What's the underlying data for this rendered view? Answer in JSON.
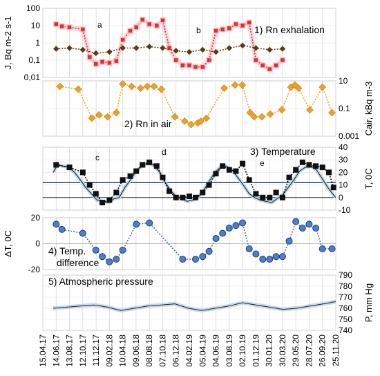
{
  "chart_data": [
    {
      "panel": 1,
      "type": "line",
      "title": "1) Rn exhalation",
      "ylabel": "J, Bq m-2 s-1",
      "yscale": "log",
      "ylim": [
        0.01,
        100
      ],
      "yticks": [
        "100",
        "10",
        "1",
        "0,1",
        "0,01"
      ],
      "annotations": [
        "a",
        "b"
      ],
      "series": [
        {
          "color": "#e0302c",
          "x": [
            "2017-06-14",
            "2017-07-10",
            "2017-08-13",
            "2017-10-12",
            "2017-11-12",
            "2017-12-10",
            "2018-01-08",
            "2018-02-09",
            "2018-03-12",
            "2018-04-10",
            "2018-05-14",
            "2018-06-10",
            "2018-07-08",
            "2018-08-08",
            "2018-09-10",
            "2018-10-07",
            "2018-11-06",
            "2018-12-06",
            "2019-01-05",
            "2019-02-04",
            "2019-03-04",
            "2019-04-05",
            "2019-05-04",
            "2019-06-04",
            "2019-07-04",
            "2019-08-03",
            "2019-09-02",
            "2019-10-02",
            "2019-11-01",
            "2019-12-01",
            "2020-01-01",
            "2020-02-01",
            "2020-03-01",
            "2020-03-30"
          ],
          "y": [
            12,
            9,
            8,
            6,
            0.15,
            0.06,
            0.08,
            0.07,
            0.09,
            1.5,
            5,
            8,
            22,
            12,
            10,
            20,
            0.5,
            0.1,
            0.05,
            0.05,
            0.04,
            0.04,
            0.1,
            5,
            6,
            7,
            12,
            10,
            15,
            0.1,
            0.05,
            0.03,
            0.05,
            0.1
          ]
        },
        {
          "color": "#7a3a10",
          "x": [
            "2017-06-14",
            "2017-08-13",
            "2017-10-12",
            "2017-12-10",
            "2018-02-09",
            "2018-04-10",
            "2018-06-10",
            "2018-08-08",
            "2018-10-07",
            "2018-12-06",
            "2019-02-04",
            "2019-04-05",
            "2019-06-04",
            "2019-08-03",
            "2019-10-02",
            "2019-12-01",
            "2020-02-01",
            "2020-03-30"
          ],
          "y": [
            0.45,
            0.5,
            0.4,
            0.25,
            0.3,
            0.5,
            0.5,
            0.6,
            0.5,
            0.35,
            0.3,
            0.4,
            0.3,
            0.5,
            0.7,
            0.5,
            0.4,
            0.45
          ]
        }
      ]
    },
    {
      "panel": 2,
      "type": "line",
      "title": "2) Rn in air",
      "ylabel": "Cair, kBq m-3",
      "yscale": "log",
      "ylim": [
        0.001,
        10
      ],
      "yticks": [
        "10",
        "0.1",
        "0.001"
      ],
      "series": [
        {
          "color": "#f0a020",
          "x": [
            "2017-07-01",
            "2017-09-22",
            "2017-11-22",
            "2017-12-24",
            "2018-02-01",
            "2018-03-12",
            "2018-04-10",
            "2018-05-20",
            "2018-06-29",
            "2018-07-30",
            "2018-08-29",
            "2018-10-01",
            "2018-12-01",
            "2019-01-14",
            "2019-02-12",
            "2019-03-14",
            "2019-03-28",
            "2019-04-22",
            "2019-07-11",
            "2019-08-29",
            "2019-10-01",
            "2019-11-05",
            "2019-11-23",
            "2019-12-28",
            "2020-02-04",
            "2020-03-27",
            "2020-05-07",
            "2020-05-25",
            "2020-06-10",
            "2020-07-31",
            "2020-09-26",
            "2020-11-08"
          ],
          "y": [
            4,
            2.5,
            0.02,
            0.035,
            0.025,
            0.05,
            6,
            4,
            3,
            4,
            4,
            2.5,
            0.025,
            0.012,
            0.007,
            0.009,
            0.012,
            0.02,
            3,
            5,
            5,
            0.05,
            0.025,
            0.025,
            0.04,
            0.08,
            3.5,
            5,
            3,
            0.08,
            3.5,
            0.05
          ]
        }
      ]
    },
    {
      "panel": 3,
      "type": "line",
      "title": "3) Temperature",
      "ylabel": "T, 0C",
      "ylim": [
        -10,
        40
      ],
      "yticks": [
        "40",
        "30",
        "20",
        "10",
        "0",
        "-10"
      ],
      "reference_line": 12,
      "annotations": [
        "c",
        "d",
        "e"
      ],
      "series": [
        {
          "name": "daily",
          "color": "#222222",
          "x": [
            "2017-06-01",
            "2017-06-20",
            "2017-07-15",
            "2017-08-10",
            "2017-09-05",
            "2017-10-01",
            "2017-10-25",
            "2017-11-20",
            "2017-12-15",
            "2018-01-10",
            "2018-02-05",
            "2018-03-01",
            "2018-03-25",
            "2018-04-20",
            "2018-05-15",
            "2018-06-10",
            "2018-07-05",
            "2018-07-30",
            "2018-08-25",
            "2018-09-20",
            "2018-10-15",
            "2018-11-10",
            "2018-12-05",
            "2019-01-01",
            "2019-01-25",
            "2019-02-20",
            "2019-03-15",
            "2019-04-10",
            "2019-05-05",
            "2019-05-30",
            "2019-06-25",
            "2019-07-20",
            "2019-08-15",
            "2019-09-10",
            "2019-10-05",
            "2019-11-01",
            "2019-11-25",
            "2019-12-20",
            "2020-01-15",
            "2020-02-10",
            "2020-03-05",
            "2020-03-30",
            "2020-04-25",
            "2020-05-20",
            "2020-06-15",
            "2020-07-10",
            "2020-08-05",
            "2020-08-30",
            "2020-09-25",
            "2020-10-20",
            "2020-11-15",
            "2020-11-25"
          ],
          "y": [
            20,
            26,
            25,
            24,
            20,
            14,
            8,
            3,
            -2,
            -3,
            -4,
            -1,
            0,
            8,
            14,
            21,
            25,
            27,
            26,
            21,
            13,
            6,
            1,
            -1,
            -3,
            -2,
            0,
            6,
            13,
            20,
            24,
            25,
            22,
            16,
            10,
            3,
            0,
            -2,
            -3,
            -4,
            -1,
            2,
            8,
            14,
            21,
            24,
            25,
            22,
            15,
            8,
            2,
            0
          ]
        },
        {
          "name": "points",
          "color": "#000000",
          "x": [
            "2017-06-14",
            "2017-08-13",
            "2017-10-12",
            "2017-11-12",
            "2017-12-10",
            "2018-01-08",
            "2018-02-09",
            "2018-03-12",
            "2018-04-10",
            "2018-05-14",
            "2018-06-10",
            "2018-07-08",
            "2018-08-08",
            "2018-09-10",
            "2018-10-07",
            "2018-11-06",
            "2018-12-06",
            "2019-01-05",
            "2019-02-04",
            "2019-03-04",
            "2019-04-05",
            "2019-05-04",
            "2019-06-04",
            "2019-07-04",
            "2019-08-03",
            "2019-09-02",
            "2019-10-02",
            "2019-11-01",
            "2019-12-01",
            "2020-01-01",
            "2020-02-01",
            "2020-03-01",
            "2020-03-30",
            "2020-04-29",
            "2020-05-29",
            "2020-06-28",
            "2020-07-28",
            "2020-08-27",
            "2020-09-26",
            "2020-10-25",
            "2020-11-15"
          ],
          "y": [
            26,
            24,
            20,
            10,
            3,
            -4,
            -2,
            4,
            14,
            17,
            21,
            26,
            28,
            25,
            16,
            5,
            0,
            0,
            1,
            0,
            4,
            10,
            19,
            25,
            22,
            21,
            27,
            14,
            3,
            0,
            0,
            4,
            0,
            16,
            22,
            28,
            26,
            25,
            24,
            20,
            8
          ]
        }
      ]
    },
    {
      "panel": 4,
      "type": "line",
      "title": "4) Temp. difference",
      "ylabel": "ΔT, 0C",
      "ylim": [
        -20,
        20
      ],
      "yticks": [
        "20",
        "0",
        "-20"
      ],
      "series": [
        {
          "color": "#3b6fb6",
          "x": [
            "2017-06-14",
            "2017-07-10",
            "2017-10-12",
            "2017-12-10",
            "2018-01-08",
            "2018-02-09",
            "2018-03-12",
            "2018-04-10",
            "2018-06-10",
            "2018-08-08",
            "2019-01-05",
            "2019-03-04",
            "2019-04-05",
            "2019-05-04",
            "2019-06-04",
            "2019-07-04",
            "2019-08-03",
            "2019-09-02",
            "2019-10-02",
            "2019-11-01",
            "2019-12-01",
            "2020-01-01",
            "2020-02-01",
            "2020-03-01",
            "2020-03-30",
            "2020-04-29",
            "2020-05-29",
            "2020-06-28",
            "2020-07-28",
            "2020-08-27",
            "2020-09-26",
            "2020-11-08"
          ],
          "y": [
            15,
            11,
            8,
            -5,
            -10,
            -14,
            -12,
            -5,
            15,
            16,
            -12,
            -12,
            -10,
            -6,
            4,
            8,
            12,
            14,
            16,
            -4,
            -8,
            -12,
            -12,
            -10,
            -10,
            2,
            17,
            12,
            15,
            12,
            -4,
            -4
          ]
        }
      ]
    },
    {
      "panel": 5,
      "type": "line",
      "title": "5) Atmospheric pressure",
      "ylabel": "P, mm Hg",
      "ylim": [
        740,
        790
      ],
      "yticks": [
        "790",
        "780",
        "770",
        "760",
        "750",
        "740"
      ],
      "series": [
        {
          "color": "#222222",
          "x": [
            "2017-06-01",
            "2017-08-01",
            "2017-10-01",
            "2017-12-01",
            "2018-02-01",
            "2018-04-01",
            "2018-06-01",
            "2018-08-01",
            "2018-10-01",
            "2018-12-01",
            "2019-02-01",
            "2019-04-01",
            "2019-06-01",
            "2019-08-01",
            "2019-10-01",
            "2019-12-01",
            "2020-02-01",
            "2020-04-01",
            "2020-06-01",
            "2020-08-01",
            "2020-10-01",
            "2020-11-25"
          ],
          "y": [
            760,
            761,
            762,
            763,
            761,
            758,
            760,
            762,
            763,
            764,
            760,
            758,
            760,
            762,
            765,
            763,
            761,
            759,
            760,
            762,
            764,
            766
          ]
        }
      ]
    }
  ],
  "x_axis": {
    "ticks": [
      "15.04.17",
      "14.06.17",
      "13.08.17",
      "12.10.17",
      "11.12.17",
      "09.02.18",
      "10.04.18",
      "09.06.18",
      "08.08.18",
      "07.10.18",
      "06.12.18",
      "04.02.19",
      "05.04.19",
      "04.06.19",
      "03.08.19",
      "02.10.19",
      "01.12.19",
      "30.01.20",
      "30.03.20",
      "29.05.20",
      "28.07.20",
      "26.09.20",
      "25.11.20"
    ]
  }
}
